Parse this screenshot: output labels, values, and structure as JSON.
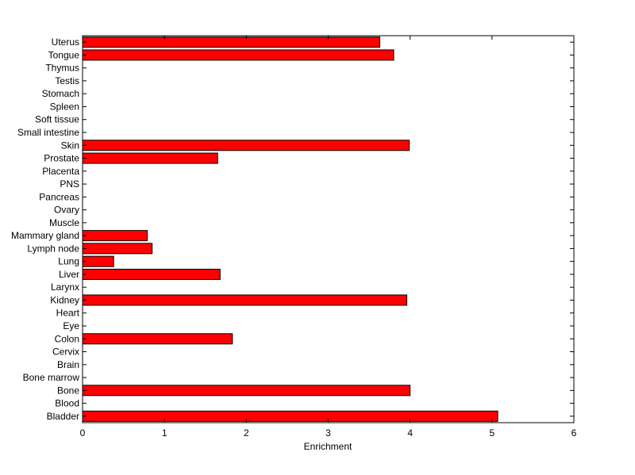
{
  "chart_data": {
    "type": "bar",
    "orientation": "horizontal",
    "xlabel": "Enrichment",
    "ylabel": "",
    "title": "",
    "xlim": [
      0,
      6
    ],
    "xticks": [
      "0",
      "1",
      "2",
      "3",
      "4",
      "5",
      "6"
    ],
    "grid": false,
    "bar_color": "#ff0000",
    "categories": [
      "Bladder",
      "Blood",
      "Bone",
      "Bone marrow",
      "Brain",
      "Cervix",
      "Colon",
      "Eye",
      "Heart",
      "Kidney",
      "Larynx",
      "Liver",
      "Lung",
      "Lymph node",
      "Mammary gland",
      "Muscle",
      "Ovary",
      "Pancreas",
      "PNS",
      "Placenta",
      "Prostate",
      "Skin",
      "Small intestine",
      "Soft tissue",
      "Spleen",
      "Stomach",
      "Testis",
      "Thymus",
      "Tongue",
      "Uterus"
    ],
    "values": [
      5.07,
      0,
      4.0,
      0,
      0,
      0,
      1.83,
      0,
      0,
      3.96,
      0,
      1.68,
      0.38,
      0.85,
      0.79,
      0,
      0,
      0,
      0,
      0,
      1.65,
      3.99,
      0,
      0,
      0,
      0,
      0,
      0,
      3.8,
      3.63
    ]
  }
}
